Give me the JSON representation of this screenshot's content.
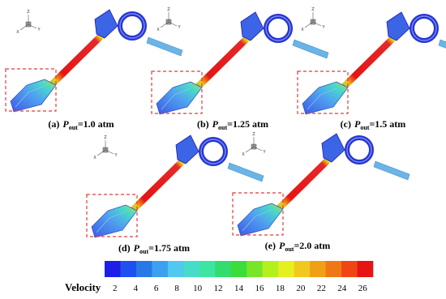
{
  "panels": [
    {
      "label": "(a)",
      "symbol": "P",
      "subscript": "out",
      "value": "=1.0 atm"
    },
    {
      "label": "(b)",
      "symbol": "P",
      "subscript": "out",
      "value": "=1.25 atm"
    },
    {
      "label": "(c)",
      "symbol": "P",
      "subscript": "out",
      "value": "=1.5 atm"
    },
    {
      "label": "(d)",
      "symbol": "P",
      "subscript": "out",
      "value": "=1.75 atm"
    },
    {
      "label": "(e)",
      "symbol": "P",
      "subscript": "out",
      "value": "=2.0 atm"
    }
  ],
  "triad_labels": [
    "Z",
    "X",
    "Y"
  ],
  "colorbar": {
    "title": "Velocity",
    "ticks": [
      2,
      4,
      6,
      8,
      10,
      12,
      14,
      16,
      18,
      20,
      22,
      24,
      26
    ],
    "range": [
      1,
      27
    ],
    "colors": [
      "#1e1ee6",
      "#1e50f0",
      "#2878e6",
      "#3ca0f0",
      "#50c8f0",
      "#46dcc8",
      "#3ce6a0",
      "#32dc6e",
      "#3cdc3c",
      "#78e628",
      "#b4f01e",
      "#e6f01e",
      "#f0c81e",
      "#f0a014",
      "#f07814",
      "#f04614",
      "#e61414"
    ]
  }
}
